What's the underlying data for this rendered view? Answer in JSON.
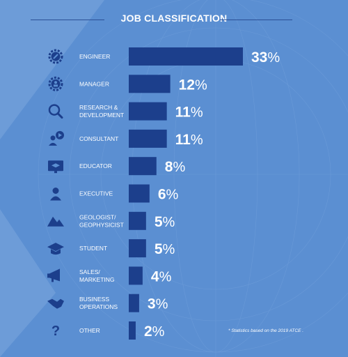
{
  "header": {
    "title": "JOB CLASSIFICATION"
  },
  "colors": {
    "background": "#5b8fd2",
    "bar": "#1c3f8c",
    "icon": "#1c3f8c",
    "label": "#ffffff",
    "value_text": "#ffffff"
  },
  "chart_data": {
    "type": "bar",
    "orientation": "horizontal",
    "title": "JOB CLASSIFICATION",
    "xlabel": "",
    "ylabel": "",
    "unit": "%",
    "xlim": [
      0,
      33
    ],
    "grid": false,
    "categories": [
      "ENGINEER",
      "MANAGER",
      "RESEARCH & DEVELOPMENT",
      "CONSULTANT",
      "EDUCATOR",
      "EXECUTIVE",
      "GEOLOGIST/ GEOPHYSICIST",
      "STUDENT",
      "SALES/ MARKETING",
      "BUSINESS OPERATIONS",
      "OTHER"
    ],
    "label_lines": [
      [
        "ENGINEER"
      ],
      [
        "MANAGER"
      ],
      [
        "RESEARCH &",
        "DEVELOPMENT"
      ],
      [
        "CONSULTANT"
      ],
      [
        "EDUCATOR"
      ],
      [
        "EXECUTIVE"
      ],
      [
        "GEOLOGIST/",
        "GEOPHYSICIST"
      ],
      [
        "STUDENT"
      ],
      [
        "SALES/",
        "MARKETING"
      ],
      [
        "BUSINESS",
        "OPERATIONS"
      ],
      [
        "OTHER"
      ]
    ],
    "icons": [
      "gear-pencil-icon",
      "gear-person-icon",
      "magnifier-icon",
      "person-speech-icon",
      "chalkboard-cap-icon",
      "person-icon",
      "mountain-icon",
      "graduation-cap-icon",
      "megaphone-icon",
      "handshake-icon",
      "question-mark-icon"
    ],
    "values": [
      33,
      12,
      11,
      11,
      8,
      6,
      5,
      5,
      4,
      3,
      2
    ]
  },
  "footnote": "* Statistics based on the 2019 ATCE ."
}
